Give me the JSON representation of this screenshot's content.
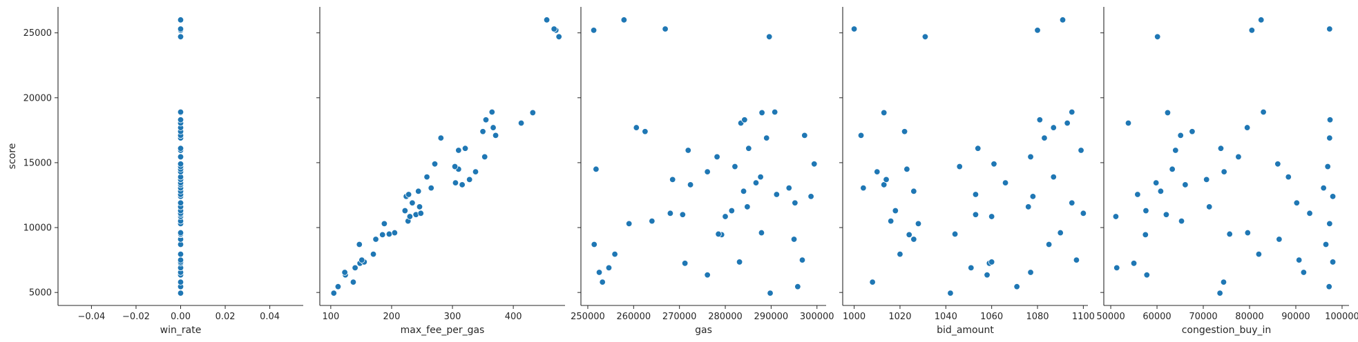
{
  "chart_data": {
    "type": "scatter",
    "layout": "pairplot-row",
    "ylabel": "score",
    "ylim": [
      4000,
      27000
    ],
    "yticks": [
      5000,
      10000,
      15000,
      20000,
      25000
    ],
    "marker_color": "#1f77b4",
    "grid": false,
    "y": [
      4950,
      5450,
      5800,
      6350,
      6550,
      6900,
      7250,
      7350,
      7500,
      7950,
      8700,
      9100,
      9450,
      9500,
      9600,
      10300,
      10500,
      10850,
      11000,
      11100,
      11300,
      11600,
      11900,
      12400,
      12550,
      12800,
      13050,
      13300,
      13450,
      13700,
      13900,
      14300,
      14500,
      14700,
      14900,
      15450,
      15950,
      16100,
      16900,
      17100,
      17400,
      17700,
      18050,
      18300,
      18850,
      18900,
      24700,
      25200,
      25300,
      26000
    ],
    "panels": [
      {
        "xlabel": "win_rate",
        "xlim": [
          -0.055,
          0.055
        ],
        "xticks": [
          -0.04,
          -0.02,
          0.0,
          0.02,
          0.04
        ],
        "xtick_labels": [
          "−0.04",
          "−0.02",
          "0.00",
          "0.02",
          "0.04"
        ],
        "show_yaxis_labels": true,
        "x": [
          0,
          0,
          0,
          0,
          0,
          0,
          0,
          0,
          0,
          0,
          0,
          0,
          0,
          0,
          0,
          0,
          0,
          0,
          0,
          0,
          0,
          0,
          0,
          0,
          0,
          0,
          0,
          0,
          0,
          0,
          0,
          0,
          0,
          0,
          0,
          0,
          0,
          0,
          0,
          0,
          0,
          0,
          0,
          0,
          0,
          0,
          0,
          0,
          0,
          0
        ]
      },
      {
        "xlabel": "max_fee_per_gas",
        "xlim": [
          82,
          485
        ],
        "xticks": [
          100,
          200,
          300,
          400
        ],
        "xtick_labels": [
          "100",
          "200",
          "300",
          "400"
        ],
        "show_yaxis_labels": false,
        "x": [
          105,
          112,
          137,
          124,
          123,
          140,
          148,
          155,
          151,
          170,
          147,
          174,
          185,
          196,
          205,
          188,
          227,
          230,
          240,
          248,
          222,
          246,
          234,
          224,
          228,
          244,
          265,
          316,
          305,
          328,
          258,
          338,
          310,
          304,
          271,
          353,
          310,
          321,
          281,
          371,
          350,
          367,
          413,
          355,
          432,
          365,
          475,
          470,
          467,
          455
        ]
      },
      {
        "xlabel": "gas",
        "xlim": [
          248500,
          302000
        ],
        "xticks": [
          250000,
          260000,
          270000,
          280000,
          290000,
          300000
        ],
        "xtick_labels": [
          "250000",
          "260000",
          "270000",
          "280000",
          "290000",
          "300000"
        ],
        "show_yaxis_labels": false,
        "x": [
          289800,
          295800,
          253200,
          276100,
          252500,
          254600,
          271200,
          283100,
          296800,
          255900,
          251400,
          295000,
          279200,
          278500,
          287900,
          259000,
          264000,
          280000,
          270700,
          268000,
          281400,
          284800,
          295200,
          298700,
          291200,
          284000,
          293900,
          272400,
          286700,
          268500,
          287700,
          276100,
          251800,
          282100,
          299400,
          278200,
          271900,
          285100,
          289000,
          297300,
          262500,
          260600,
          283400,
          284200,
          288000,
          290800,
          289600,
          251300,
          266900,
          257900
        ]
      },
      {
        "xlabel": "bid_amount",
        "xlim": [
          995,
          1102
        ],
        "xticks": [
          1000,
          1020,
          1040,
          1060,
          1080,
          1100
        ],
        "xtick_labels": [
          "1000",
          "1020",
          "1040",
          "1060",
          "1080",
          "1100"
        ],
        "show_yaxis_labels": false,
        "x": [
          1042,
          1071,
          1008,
          1058,
          1077,
          1051,
          1059,
          1060,
          1097,
          1020,
          1085,
          1026,
          1024,
          1044,
          1090,
          1028,
          1016,
          1060,
          1053,
          1100,
          1018,
          1076,
          1095,
          1078,
          1053,
          1026,
          1004,
          1013,
          1066,
          1014,
          1087,
          1010,
          1023,
          1046,
          1061,
          1077,
          1099,
          1054,
          1083,
          1003,
          1022,
          1087,
          1093,
          1081,
          1013,
          1095,
          1031,
          1080,
          1000,
          1091
        ]
      },
      {
        "xlabel": "congestion_buy_in",
        "xlim": [
          48500,
          101500
        ],
        "xticks": [
          50000,
          60000,
          70000,
          80000,
          90000,
          100000
        ],
        "xtick_labels": [
          "50000",
          "60000",
          "70000",
          "80000",
          "90000",
          "100000"
        ],
        "show_yaxis_labels": false,
        "x": [
          73600,
          97200,
          74400,
          57800,
          91700,
          51300,
          55000,
          98000,
          90700,
          82000,
          96500,
          86400,
          57500,
          75700,
          79600,
          97300,
          65300,
          51100,
          62000,
          93000,
          57600,
          71300,
          90200,
          98000,
          55800,
          60800,
          96000,
          66100,
          59800,
          70700,
          88400,
          74500,
          63300,
          96900,
          86100,
          77600,
          64000,
          73800,
          97300,
          65100,
          67600,
          79500,
          53800,
          97400,
          62300,
          83000,
          60100,
          80500,
          97300,
          82500
        ]
      }
    ]
  }
}
